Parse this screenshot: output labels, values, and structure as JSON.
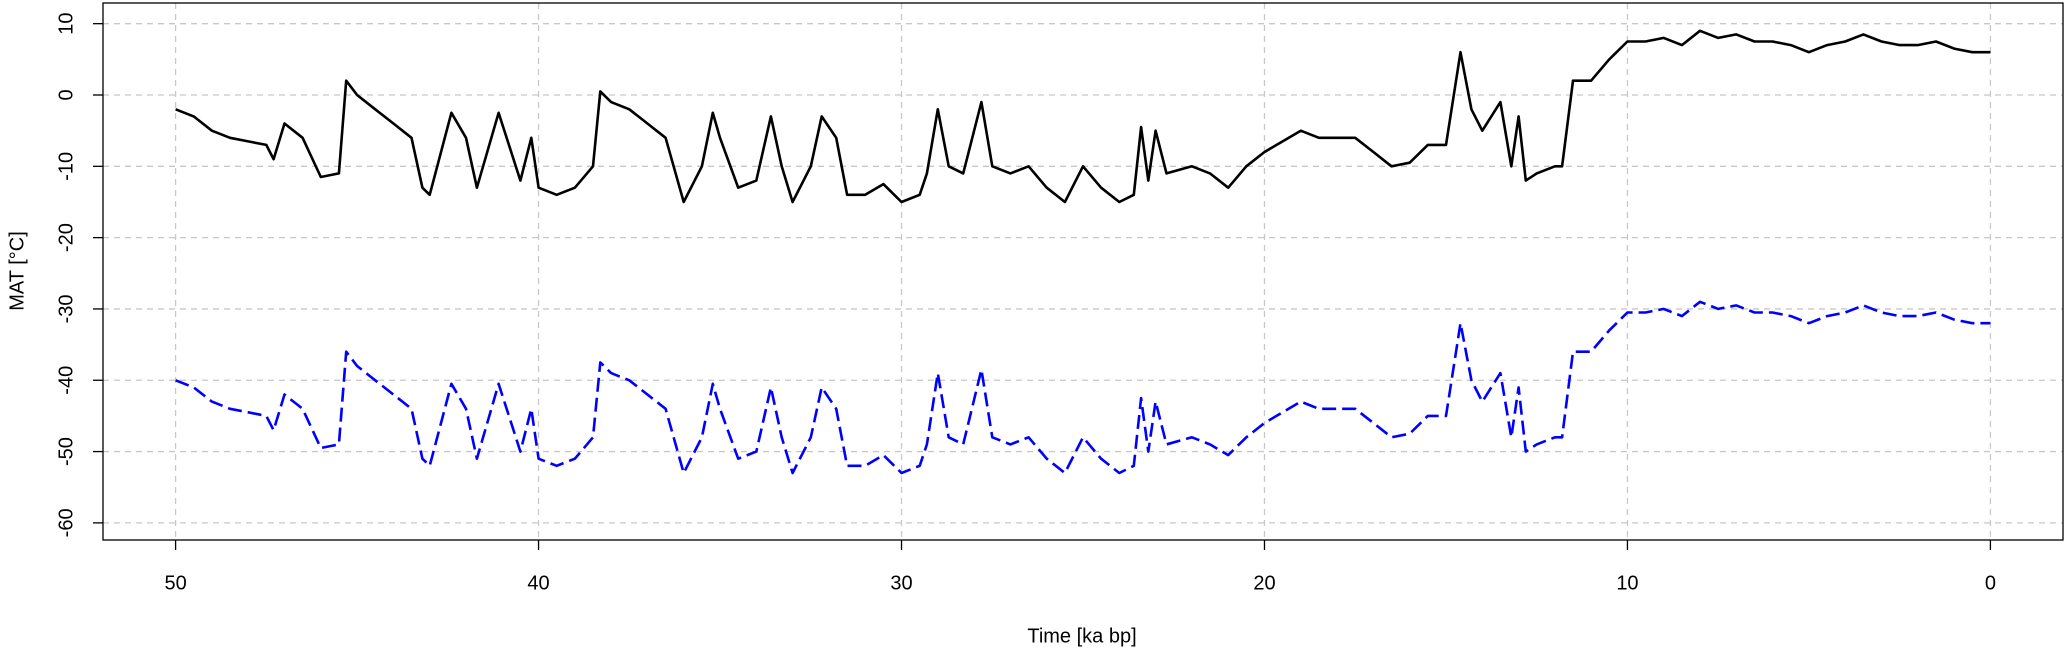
{
  "chart_data": {
    "type": "line",
    "xlabel": "Time [ka bp]",
    "ylabel": "MAT [°C]",
    "xlim": [
      52,
      -2
    ],
    "ylim": [
      -62.4,
      12.9
    ],
    "xticks": [
      50,
      40,
      30,
      20,
      10,
      0
    ],
    "yticks": [
      10,
      0,
      -10,
      -20,
      -30,
      -40,
      -50,
      -60
    ],
    "grid": true,
    "x": [
      50,
      49.5,
      49,
      48.5,
      48,
      47.5,
      47.3,
      47,
      46.5,
      46,
      45.5,
      45.3,
      45,
      44.5,
      44,
      43.5,
      43.2,
      43,
      42.4,
      42,
      41.7,
      41.1,
      40.5,
      40.2,
      40,
      39.5,
      39,
      38.5,
      38.3,
      38,
      37.5,
      37,
      36.5,
      36,
      35.5,
      35.2,
      35,
      34.5,
      34,
      33.6,
      33.3,
      33,
      32.5,
      32.2,
      31.8,
      31.5,
      31,
      30.5,
      30,
      29.5,
      29.3,
      29,
      28.7,
      28.3,
      27.8,
      27.5,
      27,
      26.5,
      26,
      25.5,
      25,
      24.5,
      24,
      23.6,
      23.4,
      23.2,
      23,
      22.7,
      22,
      21.5,
      21,
      20.5,
      20,
      19.5,
      19,
      18.5,
      18,
      17.5,
      17,
      16.5,
      16,
      15.5,
      15,
      14.6,
      14.3,
      14,
      13.5,
      13.2,
      13,
      12.8,
      12.5,
      12,
      11.8,
      11.5,
      11,
      10.5,
      10,
      9.5,
      9,
      8.5,
      8,
      7.5,
      7,
      6.5,
      6,
      5.5,
      5,
      4.5,
      4,
      3.5,
      3,
      2.5,
      2,
      1.5,
      1,
      0.5,
      0
    ],
    "series": [
      {
        "color": "#000000",
        "dash": false,
        "values": [
          -2,
          -3,
          -5,
          -6,
          -6.5,
          -7,
          -9,
          -4,
          -6,
          -11.5,
          -11,
          2,
          0,
          -2,
          -4,
          -6,
          -13,
          -14,
          -2.5,
          -6,
          -13,
          -2.5,
          -12,
          -6,
          -13,
          -14,
          -13,
          -10,
          0.5,
          -1,
          -2,
          -4,
          -6,
          -15,
          -10,
          -2.5,
          -6,
          -13,
          -12,
          -3,
          -10,
          -15,
          -10,
          -3,
          -6,
          -14,
          -14,
          -12.5,
          -15,
          -14,
          -11,
          -2,
          -10,
          -11,
          -1,
          -10,
          -11,
          -10,
          -13,
          -15,
          -10,
          -13,
          -15,
          -14,
          -4.5,
          -12,
          -5,
          -11,
          -10,
          -11,
          -13,
          -10,
          -8,
          -6.5,
          -5,
          -6,
          -6,
          -6,
          -8,
          -10,
          -9.5,
          -7,
          -7,
          6,
          -2,
          -5,
          -1,
          -10,
          -3,
          -12,
          -11,
          -10,
          -10,
          2,
          2,
          5,
          7.5,
          7.5,
          8,
          7,
          9,
          8,
          8.5,
          7.5,
          7.5,
          7,
          6,
          7,
          7.5,
          8.5,
          7.5,
          7,
          7,
          7.5,
          6.5,
          6,
          6
        ]
      },
      {
        "color": "#0000ff",
        "dash": true,
        "values": [
          -40,
          -41,
          -43,
          -44,
          -44.5,
          -45,
          -47,
          -42,
          -44,
          -49.5,
          -49,
          -36,
          -38,
          -40,
          -42,
          -44,
          -51,
          -52,
          -40.5,
          -44,
          -51,
          -40.5,
          -50,
          -44,
          -51,
          -52,
          -51,
          -48,
          -37.5,
          -39,
          -40,
          -42,
          -44,
          -53,
          -48,
          -40.5,
          -44,
          -51,
          -50,
          -41,
          -48,
          -53,
          -48,
          -41,
          -44,
          -52,
          -52,
          -50.5,
          -53,
          -52,
          -49,
          -39,
          -48,
          -49,
          -38.5,
          -48,
          -49,
          -48,
          -51,
          -53,
          -48,
          -51,
          -53,
          -52,
          -42.5,
          -50,
          -43,
          -49,
          -48,
          -49,
          -50.5,
          -48,
          -46,
          -44.5,
          -43,
          -44,
          -44,
          -44,
          -46,
          -48,
          -47.5,
          -45,
          -45,
          -32,
          -40,
          -43,
          -39,
          -48,
          -41,
          -50,
          -49,
          -48,
          -48,
          -36,
          -36,
          -33,
          -30.5,
          -30.5,
          -30,
          -31,
          -29,
          -30,
          -29.5,
          -30.5,
          -30.5,
          -31,
          -32,
          -31,
          -30.5,
          -29.5,
          -30.5,
          -31,
          -31,
          -30.5,
          -31.5,
          -32,
          -32
        ]
      }
    ]
  }
}
